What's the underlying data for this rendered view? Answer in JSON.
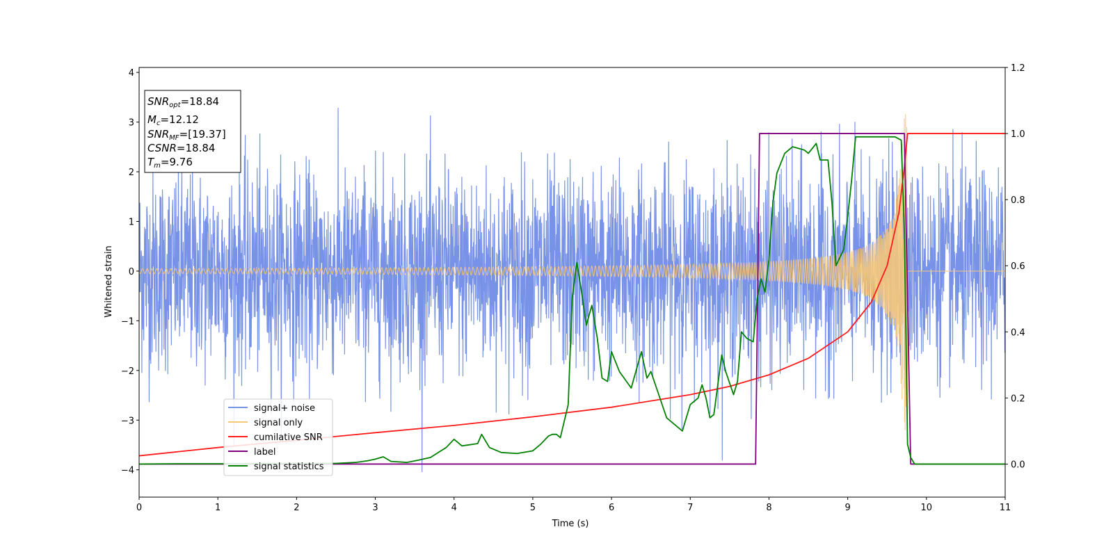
{
  "chart_data": {
    "type": "line",
    "xlabel": "Time (s)",
    "ylabel": "Whitened strain",
    "xlim": [
      0,
      11
    ],
    "ylim": [
      -4.55,
      4.1
    ],
    "y2lim": [
      -0.1,
      1.2
    ],
    "x_ticks": [
      0,
      1,
      2,
      3,
      4,
      5,
      6,
      7,
      8,
      9,
      10,
      11
    ],
    "y_ticks": [
      -4,
      -3,
      -2,
      -1,
      0,
      1,
      2,
      3,
      4
    ],
    "y_tick_labels": [
      "−4",
      "−3",
      "−2",
      "−1",
      "0",
      "1",
      "2",
      "3",
      "4"
    ],
    "y2_ticks": [
      0.0,
      0.2,
      0.4,
      0.6,
      0.8,
      1.0,
      1.2
    ],
    "y2_tick_labels": [
      "0.0",
      "0.2",
      "0.4",
      "0.6",
      "0.8",
      "1.0",
      "1.2"
    ],
    "grid": false,
    "legend_position": "lower-left",
    "info_box": {
      "snr_opt_label": "SNR",
      "snr_opt_sub": "opt",
      "snr_opt_value": "=18.84",
      "mc_label": "M",
      "mc_sub": "c",
      "mc_value": "=12.12",
      "snr_mf_label": "SNR",
      "snr_mf_sub": "MF",
      "snr_mf_value": "=[19.37]",
      "csnr_label": "CSNR",
      "csnr_value": "=18.84",
      "tm_label": "T",
      "tm_sub": "m",
      "tm_value": "=9.76"
    },
    "series": [
      {
        "name": "signal+ noise",
        "color": "#7892e8",
        "axis": "left",
        "style": "gaussian noise with std ≈ 1.0 over 0–11 s, peaks reaching about ±3.7, with the chirp signal added"
      },
      {
        "name": "signal only",
        "color": "#f5c77a",
        "axis": "left",
        "style": "chirp, amplitude ≈ 0.05 at t=0 growing to ≈ 3.2 at merger t=9.76, zero after"
      },
      {
        "name": "cumilative SNR",
        "color": "#ff1a1a",
        "axis": "right",
        "x": [
          0,
          1,
          2,
          3,
          4,
          5,
          6,
          7,
          7.5,
          8,
          8.5,
          9,
          9.3,
          9.5,
          9.65,
          9.72,
          9.76,
          11
        ],
        "y": [
          0.025,
          0.05,
          0.072,
          0.095,
          0.117,
          0.143,
          0.172,
          0.21,
          0.235,
          0.27,
          0.32,
          0.4,
          0.49,
          0.6,
          0.76,
          0.9,
          1.0,
          1.0
        ]
      },
      {
        "name": "label",
        "color": "#800080",
        "axis": "right",
        "x": [
          0,
          7.83,
          7.88,
          9.72,
          9.8,
          11
        ],
        "y": [
          0,
          0,
          1,
          1,
          0,
          0
        ]
      },
      {
        "name": "signal statistics",
        "color": "#008000",
        "axis": "right",
        "x": [
          0,
          0.5,
          1,
          1.5,
          2,
          2.5,
          2.75,
          2.9,
          3.0,
          3.1,
          3.2,
          3.4,
          3.55,
          3.7,
          3.9,
          4.0,
          4.1,
          4.3,
          4.35,
          4.45,
          4.6,
          4.8,
          5.0,
          5.1,
          5.2,
          5.25,
          5.3,
          5.35,
          5.45,
          5.5,
          5.56,
          5.62,
          5.68,
          5.75,
          5.82,
          5.88,
          5.95,
          6.0,
          6.1,
          6.25,
          6.38,
          6.45,
          6.5,
          6.6,
          6.7,
          6.8,
          6.9,
          7.0,
          7.1,
          7.15,
          7.2,
          7.25,
          7.3,
          7.4,
          7.45,
          7.55,
          7.6,
          7.65,
          7.72,
          7.8,
          7.85,
          7.9,
          7.95,
          8.0,
          8.05,
          8.1,
          8.2,
          8.3,
          8.45,
          8.5,
          8.6,
          8.65,
          8.75,
          8.8,
          8.85,
          8.95,
          9.0,
          9.05,
          9.1,
          9.15,
          9.2,
          9.4,
          9.6,
          9.68,
          9.72,
          9.76,
          9.8,
          9.85,
          10.0,
          11.0
        ],
        "y": [
          0,
          0.001,
          0.001,
          0.001,
          0.002,
          0.002,
          0.005,
          0.01,
          0.015,
          0.022,
          0.008,
          0.005,
          0.012,
          0.02,
          0.05,
          0.075,
          0.055,
          0.062,
          0.09,
          0.05,
          0.035,
          0.032,
          0.04,
          0.06,
          0.085,
          0.09,
          0.09,
          0.08,
          0.18,
          0.5,
          0.61,
          0.52,
          0.42,
          0.48,
          0.38,
          0.26,
          0.25,
          0.34,
          0.28,
          0.23,
          0.34,
          0.26,
          0.28,
          0.21,
          0.14,
          0.12,
          0.1,
          0.18,
          0.2,
          0.24,
          0.2,
          0.14,
          0.15,
          0.33,
          0.28,
          0.21,
          0.25,
          0.4,
          0.38,
          0.37,
          0.5,
          0.56,
          0.52,
          0.62,
          0.79,
          0.88,
          0.94,
          0.96,
          0.95,
          0.94,
          0.97,
          0.92,
          0.92,
          0.79,
          0.6,
          0.65,
          0.75,
          0.86,
          0.99,
          0.99,
          0.99,
          0.99,
          0.99,
          0.98,
          0.7,
          0.06,
          0.02,
          0.0,
          0.0,
          0.0
        ]
      }
    ]
  }
}
